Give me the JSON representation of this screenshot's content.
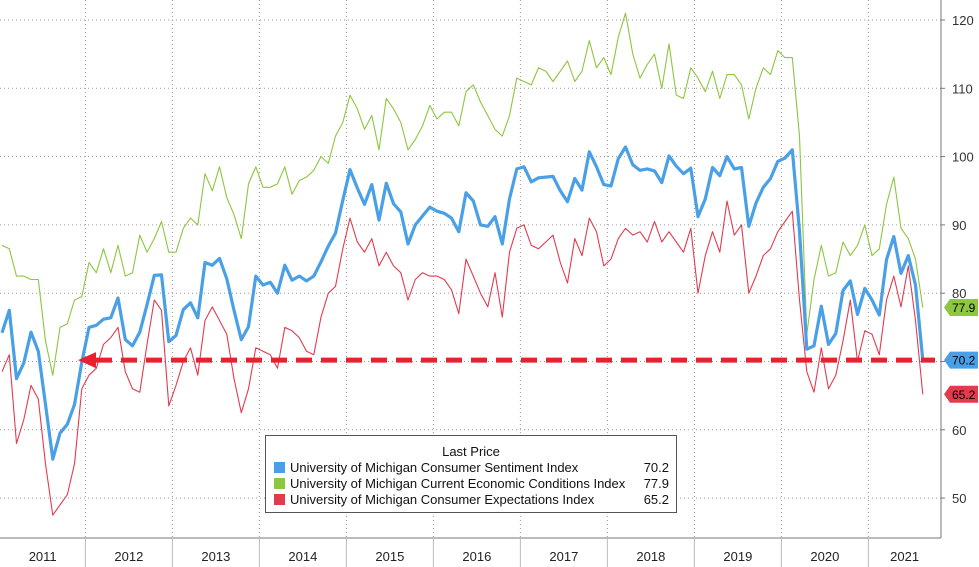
{
  "chart_data": {
    "type": "line",
    "title": "",
    "xlabel": "",
    "ylabel": "",
    "ylim": [
      44,
      124
    ],
    "yticks": [
      50,
      60,
      70,
      80,
      90,
      100,
      110,
      120
    ],
    "year_labels": [
      "2011",
      "2012",
      "2013",
      "2014",
      "2015",
      "2016",
      "2017",
      "2018",
      "2019",
      "2020",
      "2021"
    ],
    "x_start": "2011-01",
    "grid": true,
    "y_axis_position": "right",
    "legend": {
      "title": "Last Price",
      "placement": "bottom-center"
    },
    "reference_line": {
      "value": 70.2,
      "color": "#e8212e",
      "style": "dashed-arrow"
    },
    "series": [
      {
        "name": "University of Michigan Consumer Sentiment Index",
        "color": "#4aa0e6",
        "last": "70.2",
        "values": [
          74.2,
          77.5,
          67.5,
          69.8,
          74.3,
          71.5,
          63.7,
          55.7,
          59.5,
          60.8,
          63.7,
          69.9,
          75.0,
          75.3,
          76.2,
          76.4,
          79.3,
          73.2,
          72.3,
          74.3,
          78.3,
          82.6,
          82.7,
          72.9,
          73.8,
          77.6,
          78.6,
          76.4,
          84.5,
          84.1,
          85.1,
          82.1,
          77.5,
          73.2,
          75.1,
          82.5,
          81.2,
          81.6,
          80.0,
          84.1,
          81.9,
          82.5,
          81.8,
          82.5,
          84.6,
          86.9,
          88.8,
          93.6,
          98.1,
          95.4,
          93.0,
          95.9,
          90.7,
          96.1,
          93.1,
          91.9,
          87.2,
          90.0,
          91.3,
          92.6,
          92.0,
          91.7,
          91.0,
          89.0,
          94.7,
          93.5,
          90.0,
          89.8,
          91.2,
          87.2,
          93.8,
          98.2,
          98.5,
          96.3,
          96.9,
          97.0,
          97.1,
          95.0,
          93.4,
          96.8,
          95.1,
          100.7,
          98.5,
          95.9,
          95.7,
          99.7,
          101.4,
          98.8,
          98.0,
          98.2,
          97.9,
          96.2,
          100.1,
          98.6,
          97.5,
          98.3,
          91.2,
          93.8,
          98.4,
          97.2,
          100.0,
          98.2,
          98.4,
          89.8,
          93.2,
          95.5,
          96.8,
          99.3,
          99.8,
          101.0,
          89.1,
          71.8,
          72.3,
          78.1,
          72.5,
          74.1,
          80.4,
          81.8,
          76.9,
          80.7,
          79.0,
          76.8,
          84.9,
          88.3,
          82.9,
          85.5,
          81.2,
          70.2
        ]
      },
      {
        "name": "University of Michigan Current Economic Conditions Index",
        "color": "#8dc63f",
        "last": "77.9",
        "values": [
          87.0,
          86.5,
          82.5,
          82.5,
          82.0,
          82.0,
          73.0,
          68.0,
          75.0,
          75.5,
          79.0,
          79.5,
          84.5,
          83.0,
          86.5,
          83.0,
          87.0,
          82.5,
          83.0,
          88.5,
          86.0,
          88.0,
          90.5,
          86.0,
          86.0,
          89.5,
          91.0,
          90.0,
          97.5,
          95.0,
          98.5,
          94.0,
          91.5,
          88.0,
          96.0,
          98.5,
          95.5,
          95.5,
          96.0,
          98.5,
          94.5,
          96.5,
          97.0,
          98.0,
          100.0,
          99.0,
          103.0,
          105.0,
          109.0,
          107.0,
          104.0,
          106.0,
          101.0,
          108.5,
          107.0,
          105.0,
          101.0,
          102.5,
          104.5,
          107.5,
          105.5,
          106.5,
          106.5,
          104.5,
          109.5,
          110.5,
          108.0,
          106.0,
          104.0,
          103.0,
          106.0,
          111.5,
          111.0,
          110.5,
          113.0,
          112.5,
          111.0,
          112.5,
          114.0,
          111.0,
          112.5,
          117.0,
          113.0,
          114.5,
          112.0,
          117.5,
          121.0,
          115.0,
          111.5,
          113.5,
          115.0,
          110.0,
          116.5,
          109.0,
          108.5,
          113.0,
          111.5,
          109.5,
          112.5,
          108.5,
          112.0,
          112.0,
          110.5,
          105.5,
          110.0,
          113.0,
          112.0,
          115.5,
          114.5,
          114.5,
          103.0,
          74.0,
          82.0,
          87.0,
          82.5,
          83.0,
          87.5,
          85.5,
          87.0,
          90.0,
          85.5,
          86.5,
          93.0,
          97.0,
          89.5,
          88.0,
          85.0,
          77.9
        ]
      },
      {
        "name": "University of Michigan Consumer Expectations Index",
        "color": "#e23b4e",
        "last": "65.2",
        "values": [
          68.5,
          71.0,
          58.0,
          61.5,
          66.5,
          64.5,
          55.0,
          47.5,
          49.0,
          50.5,
          55.0,
          66.0,
          68.0,
          69.0,
          72.5,
          73.5,
          75.0,
          68.5,
          66.0,
          65.5,
          72.5,
          79.0,
          77.5,
          63.5,
          66.5,
          70.0,
          72.0,
          68.0,
          76.0,
          78.0,
          76.0,
          74.0,
          67.5,
          62.5,
          66.0,
          72.0,
          71.5,
          71.0,
          69.0,
          75.0,
          74.5,
          73.5,
          71.5,
          71.0,
          76.5,
          80.0,
          81.0,
          86.5,
          91.0,
          87.5,
          86.0,
          88.0,
          84.0,
          86.0,
          84.0,
          83.0,
          79.0,
          82.0,
          83.0,
          82.5,
          82.5,
          82.0,
          80.5,
          77.0,
          85.0,
          82.5,
          80.0,
          78.0,
          83.0,
          76.5,
          86.0,
          89.5,
          90.0,
          87.0,
          86.5,
          87.5,
          88.5,
          84.5,
          81.5,
          88.0,
          85.5,
          91.0,
          89.0,
          84.0,
          85.0,
          88.0,
          89.5,
          88.5,
          89.0,
          87.5,
          90.5,
          87.5,
          89.0,
          87.5,
          86.0,
          89.5,
          80.0,
          85.5,
          89.0,
          86.0,
          93.5,
          88.5,
          90.0,
          80.0,
          82.5,
          85.5,
          86.5,
          89.0,
          90.5,
          92.0,
          79.0,
          68.5,
          65.5,
          72.0,
          66.0,
          68.0,
          73.0,
          79.0,
          70.0,
          74.5,
          74.0,
          71.0,
          79.0,
          82.5,
          78.0,
          84.0,
          76.0,
          65.2
        ]
      }
    ]
  }
}
